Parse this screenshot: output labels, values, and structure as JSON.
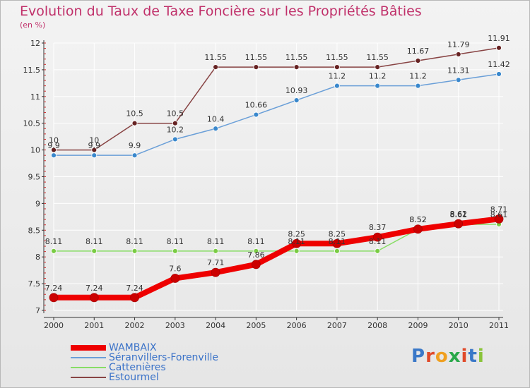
{
  "title": "Evolution du Taux de Taxe Foncière sur les Propriétés Bâties",
  "subtitle": "(en %)",
  "logo": "Proxiti",
  "colors": {
    "title": "#c0306a",
    "grid": "#ffffff",
    "axis": "#333333",
    "tick_label": "#333333",
    "legend_text": "#3a72c8"
  },
  "chart_data": {
    "type": "line",
    "x": [
      "2000",
      "2001",
      "2002",
      "2003",
      "2004",
      "2005",
      "2006",
      "2007",
      "2008",
      "2009",
      "2010",
      "2011"
    ],
    "ylim": [
      7,
      12
    ],
    "yticks": [
      "7",
      "7.5",
      "8",
      "8.5",
      "9",
      "9.5",
      "10",
      "10.5",
      "11",
      "11.5",
      "12"
    ],
    "grid": true,
    "legend_position": "bottom",
    "series": [
      {
        "name": "WAMBAIX",
        "color": "#ee0000",
        "width": 8,
        "marker_color": "#cc0000",
        "values": [
          7.24,
          7.24,
          7.24,
          7.6,
          7.71,
          7.86,
          8.25,
          8.25,
          8.37,
          8.52,
          8.62,
          8.71
        ],
        "labels": [
          "7.24",
          "7.24",
          "7.24",
          "7.6",
          "7.71",
          "7.86",
          "8.25",
          "8.25",
          "8.37",
          "8.52",
          "8.62",
          "8.71"
        ]
      },
      {
        "name": "Séranvillers-Forenville",
        "color": "#6a9fd8",
        "width": 1.5,
        "marker_color": "#3a88cc",
        "values": [
          9.9,
          9.9,
          9.9,
          10.2,
          10.4,
          10.66,
          10.93,
          11.2,
          11.2,
          11.2,
          11.31,
          11.42
        ],
        "labels": [
          "9.9",
          "9.9",
          "9.9",
          "10.2",
          "10.4",
          "10.66",
          "10.93",
          "11.2",
          "11.2",
          "11.2",
          "11.31",
          "11.42"
        ]
      },
      {
        "name": "Cattenières",
        "color": "#88dd66",
        "width": 1.5,
        "marker_color": "#7acc44",
        "values": [
          8.11,
          8.11,
          8.11,
          8.11,
          8.11,
          8.11,
          8.11,
          8.11,
          8.11,
          8.52,
          8.61,
          8.61
        ],
        "labels": [
          "8.11",
          "8.11",
          "8.11",
          "8.11",
          "8.11",
          "8.11",
          "8.11",
          "8.11",
          "8.11",
          "8.52",
          "8.61",
          "8.61"
        ]
      },
      {
        "name": "Estourmel",
        "color": "#884444",
        "width": 1.5,
        "marker_color": "#662222",
        "values": [
          10,
          10,
          10.5,
          10.5,
          11.55,
          11.55,
          11.55,
          11.55,
          11.55,
          11.67,
          11.79,
          11.91
        ],
        "labels": [
          "10",
          "10",
          "10.5",
          "10.5",
          "11.55",
          "11.55",
          "11.55",
          "11.55",
          "11.55",
          "11.67",
          "11.79",
          "11.91"
        ]
      }
    ]
  }
}
